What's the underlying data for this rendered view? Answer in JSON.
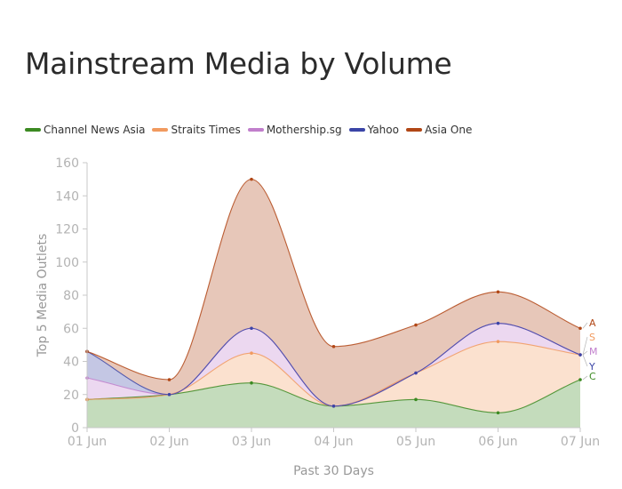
{
  "title": "Mainstream Media by Volume",
  "chart_data": {
    "type": "area",
    "stacked": true,
    "title": "Mainstream Media by Volume",
    "xlabel": "Past 30 Days",
    "ylabel": "Top 5 Media Outlets",
    "categories": [
      "01 Jun",
      "02 Jun",
      "03 Jun",
      "04 Jun",
      "05 Jun",
      "06 Jun",
      "07 Jun"
    ],
    "ylim": [
      0,
      160
    ],
    "yticks": [
      0,
      20,
      40,
      60,
      80,
      100,
      120,
      140,
      160
    ],
    "grid": false,
    "legend_position": "top-left",
    "series": [
      {
        "name": "Channel News Asia",
        "short": "C",
        "color": "#3c8a22",
        "values": [
          17,
          20,
          27,
          13,
          17,
          9,
          29
        ]
      },
      {
        "name": "Straits Times",
        "short": "S",
        "color": "#f19a5f",
        "values": [
          0,
          0,
          18,
          0,
          16,
          43,
          15
        ]
      },
      {
        "name": "Mothership.sg",
        "short": "M",
        "color": "#c17fcc",
        "values": [
          13,
          0,
          15,
          0,
          0,
          11,
          0
        ]
      },
      {
        "name": "Yahoo",
        "short": "Y",
        "color": "#3b45a7",
        "values": [
          16,
          0,
          0,
          0,
          0,
          0,
          0
        ]
      },
      {
        "name": "Asia One",
        "short": "A",
        "color": "#b14716",
        "values": [
          0,
          9,
          90,
          36,
          29,
          19,
          16
        ]
      }
    ]
  }
}
